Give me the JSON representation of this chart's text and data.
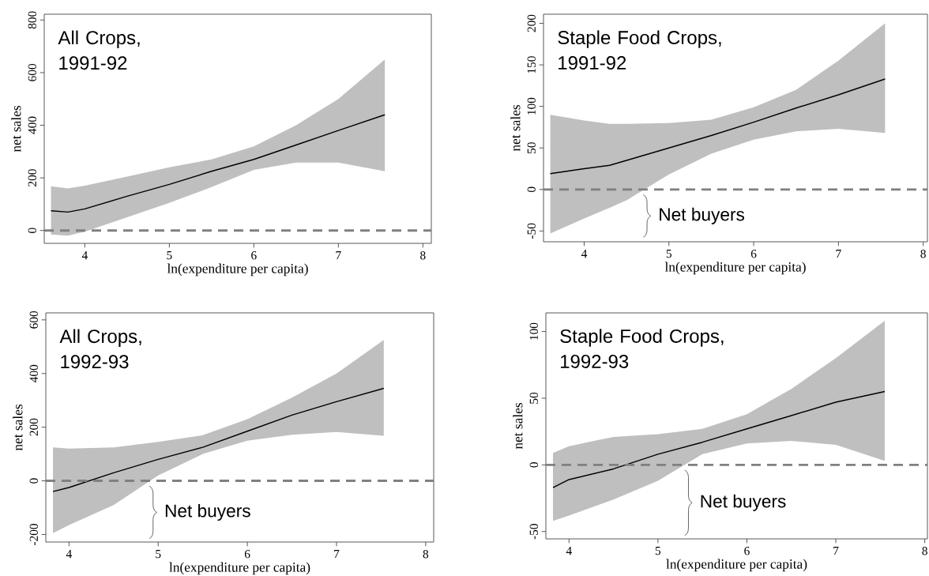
{
  "chart_data": [
    {
      "type": "line",
      "title": "All Crops, 1991-92",
      "xlabel": "ln(expenditure per capita)",
      "ylabel": "net sales",
      "xlim": [
        3.52,
        8.1
      ],
      "ylim": [
        -49,
        822
      ],
      "xticks": [
        4,
        5,
        6,
        7,
        8
      ],
      "yticks": [
        0,
        200,
        400,
        600,
        800
      ],
      "x": [
        3.6,
        3.8,
        4.0,
        4.5,
        5.0,
        5.5,
        6.0,
        6.5,
        7.0,
        7.55
      ],
      "series": [
        {
          "color": "#000000",
          "line_style": "solid",
          "values": [
            75,
            70,
            82,
            130,
            175,
            225,
            270,
            325,
            380,
            440
          ],
          "upper": [
            168,
            160,
            170,
            205,
            240,
            270,
            320,
            400,
            500,
            650
          ],
          "lower": [
            -15,
            -20,
            -5,
            50,
            105,
            165,
            230,
            258,
            258,
            225
          ]
        }
      ],
      "ref_lines": [
        {
          "axis": "y",
          "value": 0,
          "color": "#808080",
          "line_style": "dashed"
        }
      ],
      "marker": "none",
      "grid": false
    },
    {
      "type": "line",
      "title": "Staple Food Crops, 1991-92",
      "xlabel": "ln(expenditure per capita)",
      "ylabel": "net sales",
      "xlim": [
        3.52,
        8.05
      ],
      "ylim": [
        -63,
        211
      ],
      "xticks": [
        4,
        5,
        6,
        7,
        8
      ],
      "yticks": [
        -50,
        0,
        50,
        100,
        150,
        200
      ],
      "x": [
        3.6,
        4.0,
        4.3,
        4.5,
        5.0,
        5.5,
        6.0,
        6.5,
        7.0,
        7.55
      ],
      "series": [
        {
          "color": "#000000",
          "line_style": "solid",
          "values": [
            19,
            25,
            29,
            35,
            50,
            65,
            81,
            98,
            114,
            133
          ],
          "upper": [
            90,
            83,
            79,
            79,
            80,
            84,
            99,
            120,
            155,
            200
          ],
          "lower": [
            -53,
            -35,
            -22,
            -13,
            18,
            43,
            60,
            70,
            73,
            68
          ]
        }
      ],
      "ref_lines": [
        {
          "axis": "y",
          "value": 0,
          "color": "#808080",
          "line_style": "dashed"
        }
      ],
      "annotations": [
        "Net buyers"
      ],
      "marker": "none",
      "grid": false
    },
    {
      "type": "line",
      "title": "All Crops, 1992-93",
      "xlabel": "ln(expenditure per capita)",
      "ylabel": "net sales",
      "xlim": [
        3.74,
        8.09
      ],
      "ylim": [
        -228,
        626
      ],
      "xticks": [
        4,
        5,
        6,
        7,
        8
      ],
      "yticks": [
        -200,
        0,
        200,
        400,
        600
      ],
      "x": [
        3.82,
        4.0,
        4.5,
        5.0,
        5.5,
        6.0,
        6.5,
        7.0,
        7.53
      ],
      "series": [
        {
          "color": "#000000",
          "line_style": "solid",
          "values": [
            -40,
            -25,
            30,
            80,
            125,
            185,
            245,
            295,
            345
          ],
          "upper": [
            125,
            120,
            125,
            145,
            170,
            230,
            310,
            400,
            525
          ],
          "lower": [
            -195,
            -165,
            -90,
            20,
            100,
            150,
            172,
            182,
            168
          ]
        }
      ],
      "ref_lines": [
        {
          "axis": "y",
          "value": 0,
          "color": "#808080",
          "line_style": "dashed"
        }
      ],
      "annotations": [
        "Net buyers"
      ],
      "marker": "none",
      "grid": false
    },
    {
      "type": "line",
      "title": "Staple Food Crops, 1992-93",
      "xlabel": "ln(expenditure per capita)",
      "ylabel": "net sales",
      "xlim": [
        3.74,
        8.03
      ],
      "ylim": [
        -55.5,
        114
      ],
      "xticks": [
        4,
        5,
        6,
        7,
        8
      ],
      "yticks": [
        -50,
        0,
        50,
        100
      ],
      "x": [
        3.82,
        4.0,
        4.5,
        5.0,
        5.5,
        6.0,
        6.5,
        7.0,
        7.55
      ],
      "series": [
        {
          "color": "#000000",
          "line_style": "solid",
          "values": [
            -17,
            -11,
            -3,
            8,
            17,
            27,
            37,
            47,
            55
          ],
          "upper": [
            9,
            14,
            21,
            23,
            27,
            38,
            57,
            80,
            108
          ],
          "lower": [
            -42,
            -38,
            -26,
            -12,
            8,
            16,
            18,
            15,
            3
          ]
        }
      ],
      "ref_lines": [
        {
          "axis": "y",
          "value": 0,
          "color": "#808080",
          "line_style": "dashed"
        }
      ],
      "annotations": [
        "Net buyers"
      ],
      "marker": "none",
      "grid": false
    }
  ]
}
